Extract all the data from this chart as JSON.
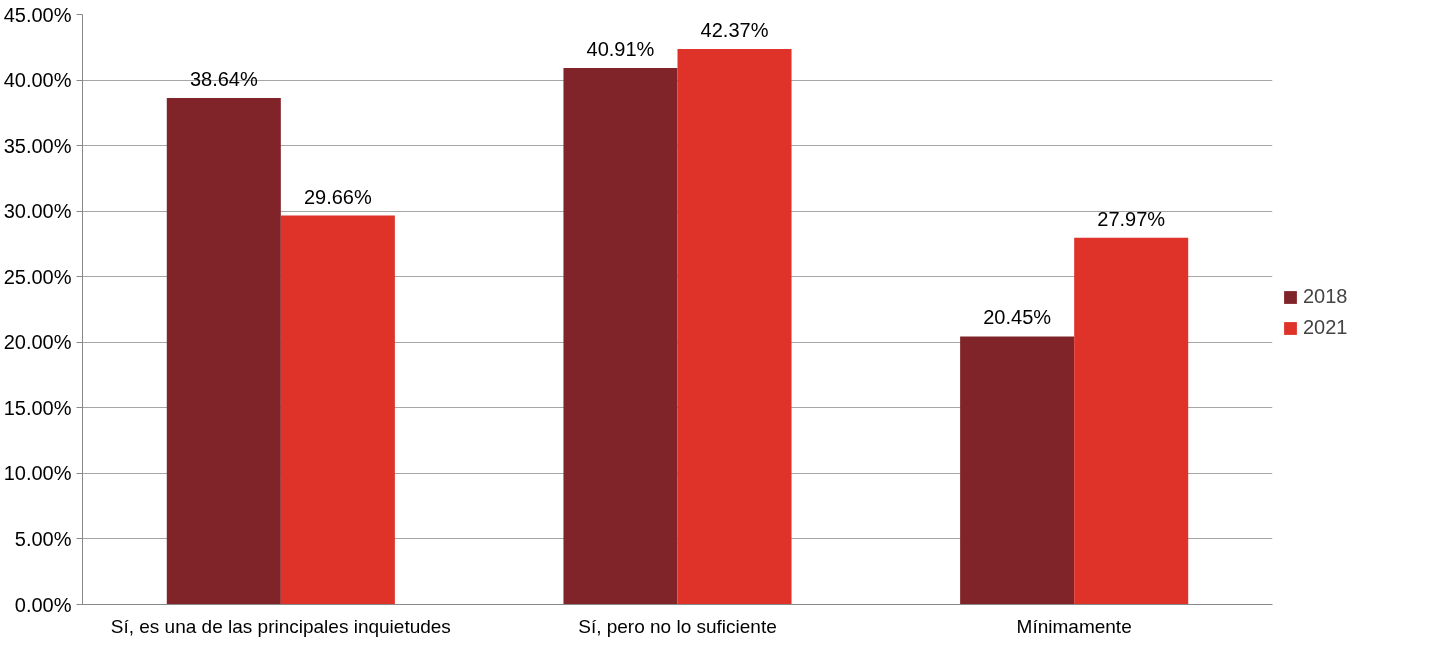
{
  "chart_data": {
    "type": "bar",
    "categories": [
      "Sí, es una de las principales inquietudes",
      "Sí, pero no lo suficiente",
      "Mínimamente"
    ],
    "series": [
      {
        "name": "2018",
        "color": "#80242a",
        "values": [
          38.64,
          40.91,
          20.45
        ],
        "value_labels": [
          "38.64%",
          "40.91%",
          "20.45%"
        ]
      },
      {
        "name": "2021",
        "color": "#df3329",
        "values": [
          29.66,
          42.37,
          27.97
        ],
        "value_labels": [
          "29.66%",
          "42.37%",
          "27.97%"
        ]
      }
    ],
    "ylim": [
      0,
      45
    ],
    "yticks": [
      {
        "value": 0,
        "label": "0.00%"
      },
      {
        "value": 5,
        "label": "5.00%"
      },
      {
        "value": 10,
        "label": "10.00%"
      },
      {
        "value": 15,
        "label": "15.00%"
      },
      {
        "value": 20,
        "label": "20.00%"
      },
      {
        "value": 25,
        "label": "25.00%"
      },
      {
        "value": 30,
        "label": "30.00%"
      },
      {
        "value": 35,
        "label": "35.00%"
      },
      {
        "value": 40,
        "label": "40.00%"
      },
      {
        "value": 45,
        "label": "45.00%"
      }
    ],
    "grid": "y",
    "legend": "right"
  }
}
